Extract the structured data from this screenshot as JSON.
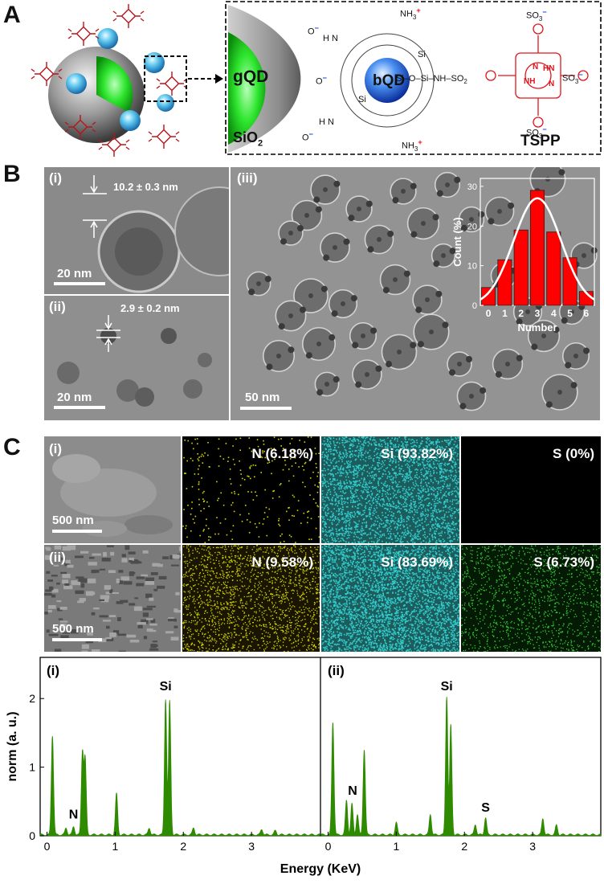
{
  "panels": {
    "a": "A",
    "b": "B",
    "c": "C"
  },
  "schematic": {
    "gqd": "gQD",
    "bqd": "bQD",
    "sio2": "SiO",
    "sio2_sub": "2",
    "tspp": "TSPP",
    "oxy": "O",
    "oxy_minus": "−",
    "si": "Si",
    "nh3": "NH",
    "nh3_sub": "3",
    "h3n": "H N",
    "plus": "+",
    "linker": "Si–O–Si–NH–SO",
    "linker_sub": "2",
    "so3": "SO",
    "so3_sub": "3",
    "so3_minus": "−",
    "pyrrole_n": "N",
    "pyrrole_hn": "HN",
    "pyrrole_nh": "NH"
  },
  "tem": {
    "i": {
      "label": "(i)",
      "measure": "10.2 ± 0.3 nm",
      "scale": "20 nm"
    },
    "ii": {
      "label": "(ii)",
      "measure": "2.9 ± 0.2 nm",
      "scale": "20 nm"
    },
    "iii": {
      "label": "(iii)",
      "scale": "50 nm"
    }
  },
  "eds_maps": {
    "rows": [
      {
        "label": "(i)",
        "scale": "500 nm",
        "n": "N (6.18%)",
        "si": "Si (93.82%)",
        "s": "S (0%)"
      },
      {
        "label": "(ii)",
        "scale": "500 nm",
        "n": "N (9.58%)",
        "si": "Si (83.69%)",
        "s": "S (6.73%)"
      }
    ]
  },
  "colors": {
    "histogram": "#ff0000",
    "fit": "#ffffff",
    "spectrum": "#2e8b00",
    "n_map": "#d6d600",
    "si_map": "#33cccc",
    "s_map": "#33cc33"
  },
  "chart_data": [
    {
      "type": "bar",
      "x": [
        0,
        1,
        2,
        3,
        4,
        5,
        6
      ],
      "values": [
        4.5,
        11.5,
        19,
        29,
        18.5,
        12,
        3.5
      ],
      "fit": "gaussian",
      "xlabel": "Number",
      "ylabel": "Count (%)",
      "xticks": [
        "0",
        "1",
        "2",
        "3",
        "4",
        "5",
        "6"
      ],
      "yticks": [
        "0",
        "10",
        "20",
        "30"
      ],
      "ylim": [
        0,
        32
      ]
    },
    {
      "type": "area",
      "xlabel": "Energy (KeV)",
      "ylabel": "norm (a. u.)",
      "xticks": [
        "0",
        "1",
        "2",
        "3"
      ],
      "yticks": [
        "0",
        "1",
        "2"
      ],
      "xlim": [
        -0.1,
        4.0
      ],
      "ylim": [
        0,
        2.6
      ],
      "series": [
        {
          "label": "(i)",
          "annotations": [
            {
              "text": "N",
              "x": 0.39,
              "y": 0.25
            },
            {
              "text": "Si",
              "x": 1.74,
              "y": 2.12
            }
          ],
          "peaks": [
            [
              0.08,
              1.45
            ],
            [
              0.28,
              0.1
            ],
            [
              0.39,
              0.12
            ],
            [
              0.52,
              1.2
            ],
            [
              0.56,
              1.1
            ],
            [
              1.02,
              0.6
            ],
            [
              1.5,
              0.1
            ],
            [
              1.74,
              1.98
            ],
            [
              1.8,
              1.95
            ],
            [
              2.15,
              0.1
            ],
            [
              3.15,
              0.08
            ],
            [
              3.35,
              0.06
            ]
          ]
        },
        {
          "label": "(ii)",
          "annotations": [
            {
              "text": "N",
              "x": 0.36,
              "y": 0.6
            },
            {
              "text": "Si",
              "x": 1.74,
              "y": 2.12
            },
            {
              "text": "S",
              "x": 2.31,
              "y": 0.35
            }
          ],
          "peaks": [
            [
              0.07,
              1.65
            ],
            [
              0.27,
              0.5
            ],
            [
              0.35,
              0.45
            ],
            [
              0.43,
              0.3
            ],
            [
              0.53,
              1.25
            ],
            [
              1.0,
              0.18
            ],
            [
              1.5,
              0.3
            ],
            [
              1.74,
              2.02
            ],
            [
              1.8,
              1.6
            ],
            [
              2.16,
              0.15
            ],
            [
              2.31,
              0.25
            ],
            [
              3.15,
              0.24
            ],
            [
              3.35,
              0.14
            ]
          ]
        }
      ]
    }
  ]
}
